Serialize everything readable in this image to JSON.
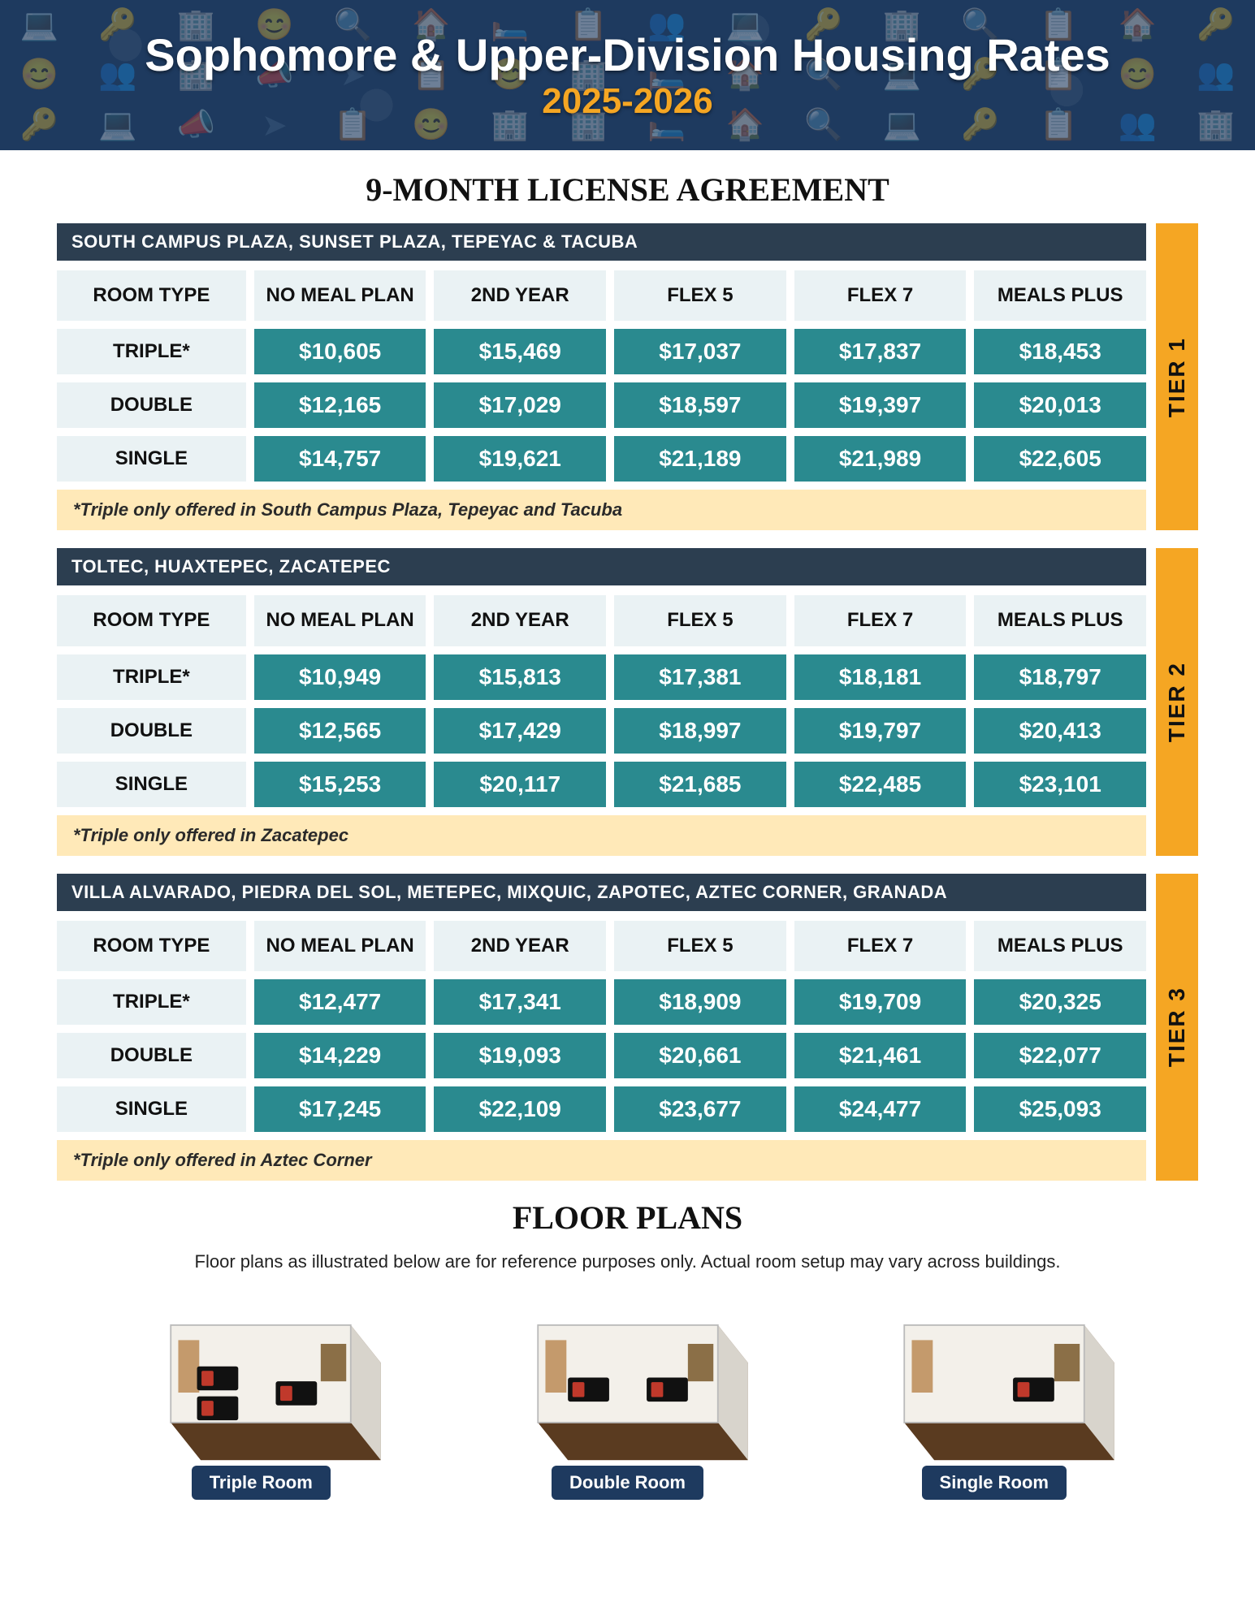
{
  "banner": {
    "title": "Sophomore & Upper-Division Housing Rates",
    "year": "2025-2026",
    "bg_color": "#1e3a5f",
    "title_color": "#ffffff",
    "year_color": "#f5a623"
  },
  "section_title": "9-MONTH LICENSE AGREEMENT",
  "columns": [
    "ROOM TYPE",
    "NO MEAL PLAN",
    "2ND YEAR",
    "FLEX 5",
    "FLEX 7",
    "MEALS PLUS"
  ],
  "row_types": [
    "TRIPLE*",
    "DOUBLE",
    "SINGLE"
  ],
  "colors": {
    "tier_header_bg": "#2c3e50",
    "col_header_bg": "#eaf2f4",
    "price_cell_bg": "#2a8a8f",
    "price_cell_text": "#ffffff",
    "footnote_bg": "#ffe9b8",
    "tier_tab_bg": "#f5a623"
  },
  "tiers": [
    {
      "label": "TIER 1",
      "header": "SOUTH CAMPUS PLAZA, SUNSET PLAZA, TEPEYAC & TACUBA",
      "footnote": "*Triple only offered in South Campus Plaza, Tepeyac and Tacuba",
      "rows": [
        [
          "$10,605",
          "$15,469",
          "$17,037",
          "$17,837",
          "$18,453"
        ],
        [
          "$12,165",
          "$17,029",
          "$18,597",
          "$19,397",
          "$20,013"
        ],
        [
          "$14,757",
          "$19,621",
          "$21,189",
          "$21,989",
          "$22,605"
        ]
      ]
    },
    {
      "label": "TIER 2",
      "header": "TOLTEC, HUAXTEPEC, ZACATEPEC",
      "footnote": "*Triple only offered in Zacatepec",
      "rows": [
        [
          "$10,949",
          "$15,813",
          "$17,381",
          "$18,181",
          "$18,797"
        ],
        [
          "$12,565",
          "$17,429",
          "$18,997",
          "$19,797",
          "$20,413"
        ],
        [
          "$15,253",
          "$20,117",
          "$21,685",
          "$22,485",
          "$23,101"
        ]
      ]
    },
    {
      "label": "TIER 3",
      "header": "VILLA ALVARADO, PIEDRA DEL SOL, METEPEC, MIXQUIC, ZAPOTEC, AZTEC CORNER, GRANADA",
      "footnote": "*Triple only offered in Aztec Corner",
      "rows": [
        [
          "$12,477",
          "$17,341",
          "$18,909",
          "$19,709",
          "$20,325"
        ],
        [
          "$14,229",
          "$19,093",
          "$20,661",
          "$21,461",
          "$22,077"
        ],
        [
          "$17,245",
          "$22,109",
          "$23,677",
          "$24,477",
          "$25,093"
        ]
      ]
    }
  ],
  "floor_plans": {
    "title": "FLOOR PLANS",
    "note": "Floor plans as illustrated below are for reference purposes only. Actual room setup may vary across buildings.",
    "items": [
      {
        "label": "Triple Room",
        "beds": 3
      },
      {
        "label": "Double Room",
        "beds": 2
      },
      {
        "label": "Single Room",
        "beds": 1
      }
    ],
    "label_bg": "#1e3a5f",
    "label_color": "#ffffff"
  }
}
